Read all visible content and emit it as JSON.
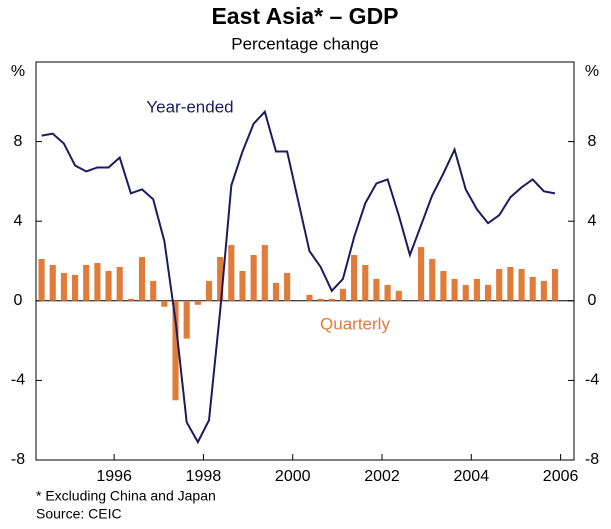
{
  "chart_data": {
    "type": "bar-line",
    "title": "East Asia* – GDP",
    "subtitle": "Percentage change",
    "y_label": "%",
    "footnotes": [
      "*  Excluding China and Japan",
      "Source: CEIC"
    ],
    "x": [
      1994.875,
      1995.125,
      1995.375,
      1995.625,
      1995.875,
      1996.125,
      1996.375,
      1996.625,
      1996.875,
      1997.125,
      1997.375,
      1997.625,
      1997.875,
      1998.125,
      1998.375,
      1998.625,
      1998.875,
      1999.125,
      1999.375,
      1999.625,
      1999.875,
      2000.125,
      2000.375,
      2000.625,
      2000.875,
      2001.125,
      2001.375,
      2001.625,
      2001.875,
      2002.125,
      2002.375,
      2002.625,
      2002.875,
      2003.125,
      2003.375,
      2003.625,
      2003.875,
      2004.125,
      2004.375,
      2004.625,
      2004.875,
      2005.125,
      2005.375,
      2005.625,
      2005.875,
      2006.125,
      2006.375
    ],
    "series": [
      {
        "name": "Quarterly",
        "kind": "bar",
        "color": "#e07b39",
        "values": [
          2.1,
          1.8,
          1.4,
          1.3,
          1.8,
          1.9,
          1.5,
          1.7,
          0.1,
          2.2,
          1.0,
          -0.3,
          -5.0,
          -1.9,
          -0.2,
          1.0,
          2.2,
          2.8,
          1.5,
          2.3,
          2.8,
          0.9,
          1.4,
          0.0,
          0.3,
          0.1,
          0.1,
          0.6,
          2.3,
          1.8,
          1.1,
          0.8,
          0.5,
          0.0,
          2.7,
          2.1,
          1.5,
          1.1,
          0.8,
          1.1,
          0.8,
          1.6,
          1.7,
          1.6,
          1.2,
          1.0,
          1.6
        ]
      },
      {
        "name": "Year-ended",
        "kind": "line",
        "color": "#1b1b5e",
        "values": [
          8.3,
          8.4,
          7.9,
          6.8,
          6.5,
          6.7,
          6.7,
          7.2,
          5.4,
          5.6,
          5.1,
          3.0,
          -1.0,
          -6.1,
          -7.1,
          -6.0,
          -0.5,
          5.8,
          7.5,
          8.9,
          9.5,
          7.5,
          7.5,
          5.0,
          2.5,
          1.7,
          0.5,
          1.1,
          3.2,
          4.9,
          5.9,
          6.1,
          4.3,
          2.3,
          3.8,
          5.3,
          6.4,
          7.6,
          5.6,
          4.6,
          3.9,
          4.3,
          5.2,
          5.7,
          6.1,
          5.5,
          5.4
        ]
      }
    ],
    "xlim": [
      1994.75,
      2006.8
    ],
    "xticks": [
      {
        "value": 1996.5,
        "label": "1996"
      },
      {
        "value": 1998.5,
        "label": "1998"
      },
      {
        "value": 2000.5,
        "label": "2000"
      },
      {
        "value": 2002.5,
        "label": "2002"
      },
      {
        "value": 2004.5,
        "label": "2004"
      },
      {
        "value": 2006.5,
        "label": "2006"
      }
    ],
    "ylim": [
      -8,
      12
    ],
    "yticks": [
      -8,
      -4,
      0,
      4,
      8
    ]
  }
}
